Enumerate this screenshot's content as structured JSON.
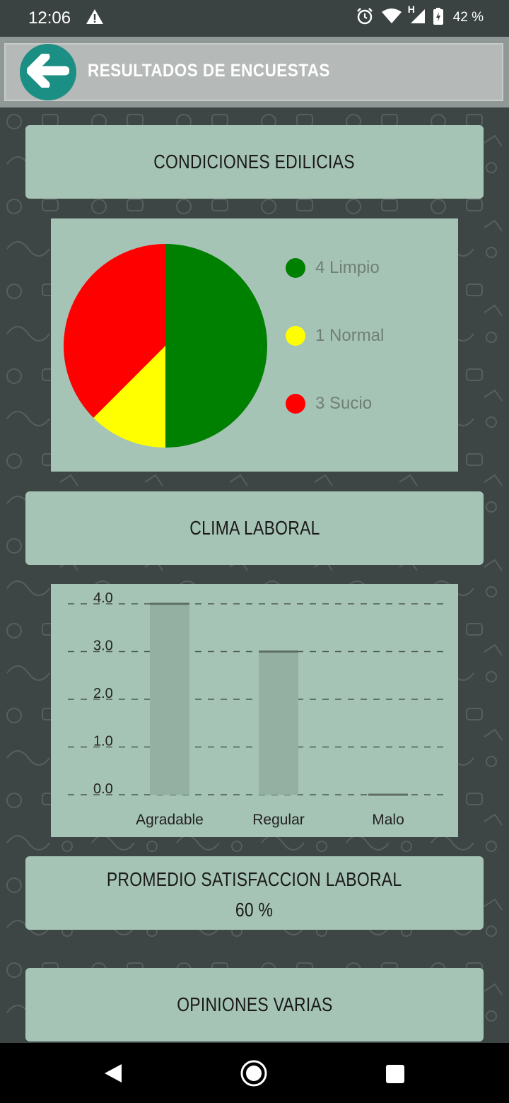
{
  "status_bar": {
    "time": "12:06",
    "network": "H",
    "battery": "42 %",
    "icons": [
      "warning-icon",
      "alarm-icon",
      "wifi-icon",
      "signal-icon",
      "battery-icon"
    ]
  },
  "header": {
    "title": "RESULTADOS DE ENCUESTAS",
    "back_icon": "arrow-left-icon"
  },
  "sections": {
    "condiciones": "CONDICIONES EDILICIAS",
    "clima": "CLIMA LABORAL",
    "promedio_title": "PROMEDIO SATISFACCION LABORAL",
    "promedio_value": "60 %",
    "opiniones": "OPINIONES VARIAS"
  },
  "pie_legend": [
    {
      "label": "4 Limpio",
      "color": "#008000"
    },
    {
      "label": "1 Normal",
      "color": "#ffff00"
    },
    {
      "label": "3 Sucio",
      "color": "#ff0000"
    }
  ],
  "chart_data": [
    {
      "type": "pie",
      "labels": [
        "Limpio",
        "Normal",
        "Sucio"
      ],
      "values": [
        4,
        1,
        3
      ],
      "colors": [
        "#008000",
        "#ffff00",
        "#ff0000"
      ],
      "legend": "right"
    },
    {
      "type": "bar",
      "categories": [
        "Agradable",
        "Regular",
        "Malo"
      ],
      "values": [
        4,
        3,
        0
      ],
      "ylim": [
        0,
        4
      ],
      "yticks": [
        "0.0",
        "1.0",
        "2.0",
        "3.0",
        "4.0"
      ],
      "grid": "dashed horizontal",
      "bar_color": "#93b0a2"
    }
  ],
  "navbar": {
    "icons": [
      "back-nav-icon",
      "home-nav-icon",
      "recents-nav-icon"
    ]
  }
}
